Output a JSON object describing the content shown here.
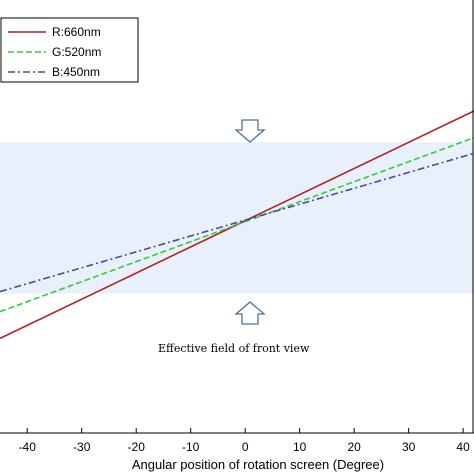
{
  "chart_data": {
    "type": "line",
    "xlabel": "Angular position of rotation screen (Degree)",
    "ylabel": "",
    "x_ticks": [
      -40,
      -30,
      -20,
      -10,
      0,
      10,
      20,
      30,
      40
    ],
    "xlim": [
      -45,
      42
    ],
    "ylim": [
      -1,
      1
    ],
    "grid": false,
    "legend_position": "top-left",
    "series": [
      {
        "name": "R:660nm",
        "color": "#b22222",
        "dash": "solid",
        "x": [
          -45,
          42
        ],
        "y": [
          -0.54,
          0.48
        ]
      },
      {
        "name": "G:520nm",
        "color": "#33cc33",
        "dash": "dashed",
        "x": [
          -45,
          42
        ],
        "y": [
          -0.42,
          0.36
        ]
      },
      {
        "name": "B:450nm",
        "color": "#4a4a9c",
        "dash": "dashdot",
        "x": [
          -45,
          42
        ],
        "y": [
          -0.33,
          0.29
        ]
      }
    ],
    "band": {
      "y0": -0.34,
      "y1": 0.34,
      "color": "#e8f1fb"
    },
    "annotation": "Effective field of front view"
  }
}
